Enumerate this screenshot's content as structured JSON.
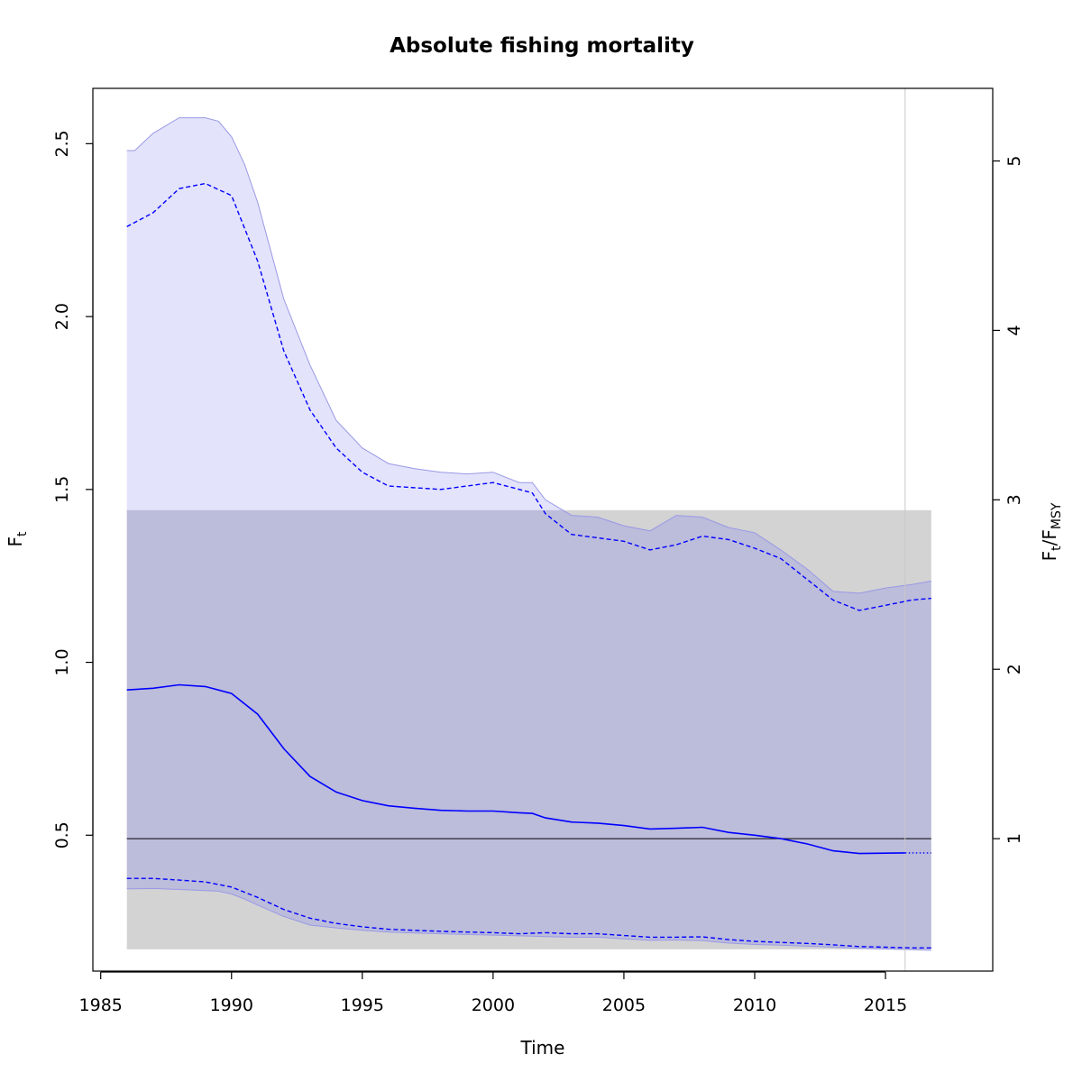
{
  "chart_data": {
    "type": "line",
    "title": "Absolute fishing mortality",
    "xlabel": "Time",
    "ylabel": {
      "main": "F",
      "sub": "t"
    },
    "ylabel_right": {
      "num": "F",
      "num_sub": "t",
      "sep": "/",
      "den": "F",
      "den_sub": "MSY"
    },
    "xlim": [
      1984.7,
      2019.1
    ],
    "ylim": [
      0.107,
      2.66
    ],
    "x_ticks": [
      1985,
      1990,
      1995,
      2000,
      2005,
      2010,
      2015
    ],
    "y_ticks": [
      0.5,
      1.0,
      1.5,
      2.0,
      2.5
    ],
    "y_tick_labels": [
      "0.5",
      "1.0",
      "1.5",
      "2.0",
      "2.5"
    ],
    "right_ticks": [
      1,
      2,
      3,
      4,
      5
    ],
    "fmsy": 0.49,
    "ref_line_y": 0.49,
    "vline_x": 2015.75,
    "last_obs_x": 2015.75,
    "fmsy_band": {
      "x": [
        1986.0,
        2016.75
      ],
      "y": [
        0.17,
        1.44
      ]
    },
    "colors": {
      "line": "#0000ff",
      "ci_fill": "#e3e3fb",
      "ci_edge": "#9999e6",
      "band_gray": "#d3d3d3",
      "overlap": "#bcbcdb",
      "ref_line": "#000000",
      "vline": "#c8c8c8"
    },
    "series": [
      {
        "name": "F",
        "style": "solid",
        "x": [
          1986.0,
          1987.0,
          1988.0,
          1989.0,
          1990.0,
          1991.0,
          1992.0,
          1993.0,
          1994.0,
          1995.0,
          1996.0,
          1997.0,
          1998.0,
          1999.0,
          2000.0,
          2001.0,
          2001.5,
          2002.0,
          2003.0,
          2004.0,
          2005.0,
          2006.0,
          2007.0,
          2008.0,
          2009.0,
          2010.0,
          2011.0,
          2012.0,
          2013.0,
          2014.0,
          2015.0,
          2015.75
        ],
        "y": [
          0.92,
          0.925,
          0.935,
          0.93,
          0.91,
          0.85,
          0.75,
          0.67,
          0.625,
          0.6,
          0.585,
          0.578,
          0.572,
          0.57,
          0.57,
          0.565,
          0.563,
          0.55,
          0.538,
          0.535,
          0.528,
          0.518,
          0.52,
          0.523,
          0.508,
          0.5,
          0.49,
          0.475,
          0.455,
          0.447,
          0.448,
          0.449
        ]
      },
      {
        "name": "F prediction",
        "style": "dotted",
        "x": [
          2015.75,
          2016.75
        ],
        "y": [
          0.449,
          0.449
        ]
      },
      {
        "name": "F upper 95% CI",
        "style": "dashed",
        "x": [
          1986.0,
          1987.0,
          1988.0,
          1989.0,
          1990.0,
          1991.0,
          1992.0,
          1993.0,
          1994.0,
          1995.0,
          1996.0,
          1997.0,
          1998.0,
          1999.0,
          2000.0,
          2001.0,
          2001.5,
          2002.0,
          2003.0,
          2004.0,
          2005.0,
          2006.0,
          2007.0,
          2008.0,
          2009.0,
          2010.0,
          2011.0,
          2012.0,
          2013.0,
          2014.0,
          2015.0,
          2016.0,
          2016.75
        ],
        "y": [
          2.26,
          2.3,
          2.37,
          2.385,
          2.35,
          2.16,
          1.9,
          1.73,
          1.62,
          1.55,
          1.51,
          1.505,
          1.5,
          1.51,
          1.52,
          1.5,
          1.49,
          1.43,
          1.37,
          1.36,
          1.35,
          1.325,
          1.34,
          1.365,
          1.355,
          1.33,
          1.3,
          1.24,
          1.18,
          1.15,
          1.165,
          1.18,
          1.185
        ]
      },
      {
        "name": "F lower 95% CI",
        "style": "dashed",
        "x": [
          1986.0,
          1987.0,
          1988.0,
          1989.0,
          1990.0,
          1991.0,
          1992.0,
          1993.0,
          1994.0,
          1995.0,
          1996.0,
          1997.0,
          1998.0,
          1999.0,
          2000.0,
          2001.0,
          2002.0,
          2003.0,
          2004.0,
          2005.0,
          2006.0,
          2007.0,
          2008.0,
          2009.0,
          2010.0,
          2011.0,
          2012.0,
          2013.0,
          2014.0,
          2015.0,
          2016.0,
          2016.75
        ],
        "y": [
          0.375,
          0.375,
          0.37,
          0.365,
          0.35,
          0.32,
          0.285,
          0.26,
          0.245,
          0.235,
          0.228,
          0.225,
          0.222,
          0.22,
          0.218,
          0.215,
          0.218,
          0.215,
          0.215,
          0.21,
          0.205,
          0.205,
          0.206,
          0.198,
          0.193,
          0.19,
          0.187,
          0.183,
          0.178,
          0.176,
          0.174,
          0.174
        ]
      }
    ],
    "ci_band": {
      "name": "F 95% CI band",
      "x": [
        1986.0,
        1986.3,
        1987.0,
        1988.0,
        1989.0,
        1989.5,
        1990.0,
        1990.5,
        1991.0,
        1992.0,
        1993.0,
        1994.0,
        1995.0,
        1996.0,
        1997.0,
        1998.0,
        1999.0,
        2000.0,
        2001.0,
        2001.5,
        2002.0,
        2003.0,
        2004.0,
        2005.0,
        2006.0,
        2007.0,
        2008.0,
        2009.0,
        2010.0,
        2011.0,
        2012.0,
        2013.0,
        2014.0,
        2015.0,
        2016.0,
        2016.75
      ],
      "upper": [
        2.48,
        2.48,
        2.53,
        2.575,
        2.575,
        2.565,
        2.52,
        2.44,
        2.33,
        2.05,
        1.86,
        1.7,
        1.62,
        1.575,
        1.56,
        1.55,
        1.545,
        1.55,
        1.52,
        1.52,
        1.47,
        1.425,
        1.42,
        1.395,
        1.38,
        1.425,
        1.42,
        1.39,
        1.375,
        1.325,
        1.27,
        1.205,
        1.2,
        1.215,
        1.225,
        1.235
      ],
      "lower": [
        0.345,
        0.345,
        0.346,
        0.343,
        0.34,
        0.338,
        0.33,
        0.315,
        0.298,
        0.265,
        0.24,
        0.232,
        0.225,
        0.22,
        0.217,
        0.215,
        0.213,
        0.211,
        0.209,
        0.208,
        0.207,
        0.205,
        0.205,
        0.2,
        0.196,
        0.197,
        0.195,
        0.188,
        0.184,
        0.182,
        0.179,
        0.176,
        0.173,
        0.171,
        0.169,
        0.167
      ]
    }
  }
}
